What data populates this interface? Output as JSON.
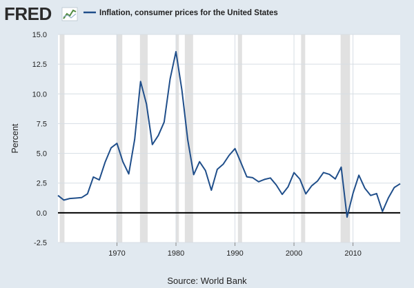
{
  "brand": {
    "logo_text": "FRED"
  },
  "colors": {
    "background": "#e1e9f0",
    "plot_background": "#ffffff",
    "series": "#1f4e8a",
    "recession": "#e1e1e1",
    "gridline": "#d6dde4",
    "zero_line": "#000000"
  },
  "chart_data": {
    "type": "line",
    "title": "Inflation, consumer prices for the United States",
    "xlabel": "",
    "ylabel": "Percent",
    "source": "Source: World Bank",
    "xlim": [
      1960,
      2018
    ],
    "ylim": [
      -2.5,
      15.0
    ],
    "y_ticks": [
      -2.5,
      0.0,
      2.5,
      5.0,
      7.5,
      10.0,
      12.5,
      15.0
    ],
    "y_tick_labels": [
      "-2.5",
      "0.0",
      "2.5",
      "5.0",
      "7.5",
      "10.0",
      "12.5",
      "15.0"
    ],
    "x_ticks": [
      1970,
      1980,
      1990,
      2000,
      2010
    ],
    "x_tick_labels": [
      "1970",
      "1980",
      "1990",
      "2000",
      "2010"
    ],
    "grid": true,
    "recessions": [
      [
        1960.3,
        1961.1
      ],
      [
        1969.9,
        1970.9
      ],
      [
        1973.9,
        1975.2
      ],
      [
        1980.0,
        1980.5
      ],
      [
        1981.5,
        1982.9
      ],
      [
        1990.5,
        1991.2
      ],
      [
        2001.2,
        2001.9
      ],
      [
        2007.9,
        2009.5
      ]
    ],
    "series": [
      {
        "name": "Inflation, consumer prices for the United States",
        "x": [
          1960,
          1961,
          1962,
          1963,
          1964,
          1965,
          1966,
          1967,
          1968,
          1969,
          1970,
          1971,
          1972,
          1973,
          1974,
          1975,
          1976,
          1977,
          1978,
          1979,
          1980,
          1981,
          1982,
          1983,
          1984,
          1985,
          1986,
          1987,
          1988,
          1989,
          1990,
          1991,
          1992,
          1993,
          1994,
          1995,
          1996,
          1997,
          1998,
          1999,
          2000,
          2001,
          2002,
          2003,
          2004,
          2005,
          2006,
          2007,
          2008,
          2009,
          2010,
          2011,
          2012,
          2013,
          2014,
          2015,
          2016,
          2017,
          2018
        ],
        "values": [
          1.46,
          1.07,
          1.2,
          1.24,
          1.28,
          1.59,
          3.01,
          2.77,
          4.27,
          5.46,
          5.84,
          4.29,
          3.27,
          6.18,
          11.05,
          9.14,
          5.74,
          6.5,
          7.63,
          11.25,
          13.55,
          10.33,
          6.13,
          3.21,
          4.3,
          3.55,
          1.9,
          3.66,
          4.08,
          4.83,
          5.4,
          4.23,
          3.03,
          2.95,
          2.61,
          2.81,
          2.93,
          2.34,
          1.55,
          2.19,
          3.38,
          2.83,
          1.59,
          2.27,
          2.68,
          3.39,
          3.23,
          2.85,
          3.84,
          -0.36,
          1.64,
          3.16,
          2.07,
          1.46,
          1.62,
          0.12,
          1.26,
          2.13,
          2.44
        ]
      }
    ]
  }
}
